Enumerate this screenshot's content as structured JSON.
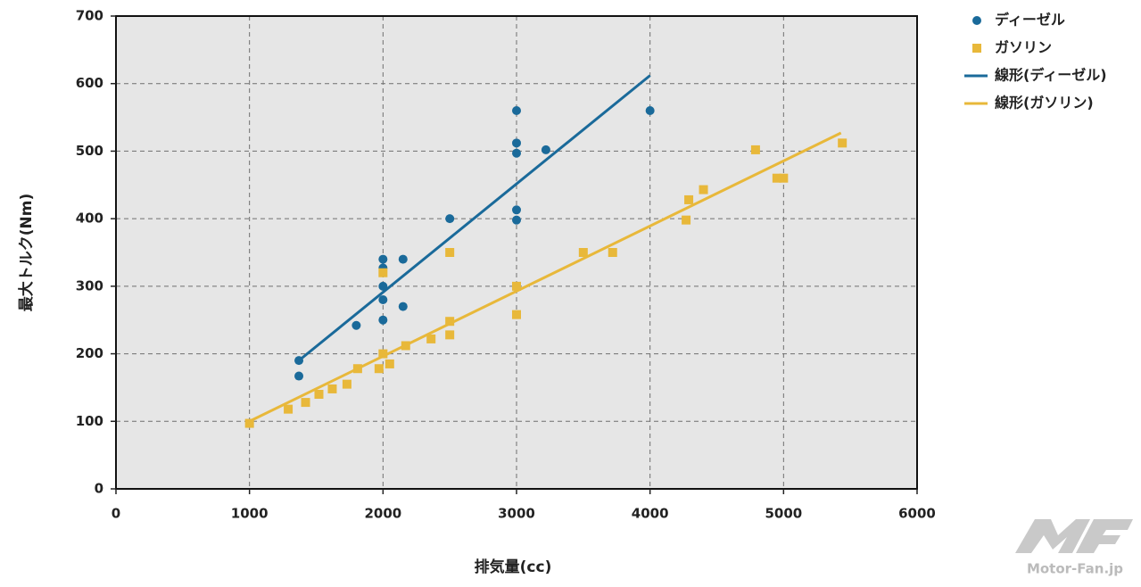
{
  "chart_data": {
    "type": "scatter",
    "xlabel": "排気量(cc)",
    "ylabel": "最大トルク(Nm)",
    "xlim": [
      0,
      6000
    ],
    "ylim": [
      0,
      700
    ],
    "xticks": [
      0,
      1000,
      2000,
      3000,
      4000,
      5000,
      6000
    ],
    "yticks": [
      0,
      100,
      200,
      300,
      400,
      500,
      600,
      700
    ],
    "grid": true,
    "legend": "right",
    "watermark": "Motor-Fan.jp",
    "series": [
      {
        "name": "ディーゼル",
        "type": "scatter",
        "marker": "circle",
        "color": "#1a6a9a",
        "x": [
          1370,
          1370,
          1800,
          2000,
          2000,
          2000,
          2000,
          2000,
          2150,
          2150,
          2500,
          3000,
          3000,
          3000,
          3000,
          3000,
          3220,
          4000
        ],
        "values": [
          190,
          167,
          242,
          340,
          327,
          300,
          280,
          250,
          340,
          270,
          400,
          560,
          512,
          497,
          413,
          398,
          502,
          560
        ]
      },
      {
        "name": "ガソリン",
        "type": "scatter",
        "marker": "square",
        "color": "#e8b83a",
        "x": [
          1000,
          1290,
          1420,
          1520,
          1620,
          1730,
          1810,
          1970,
          2000,
          2000,
          2050,
          2170,
          2360,
          2500,
          2500,
          2500,
          3000,
          3000,
          3500,
          3720,
          4270,
          4290,
          4400,
          4790,
          4950,
          5000,
          5440
        ],
        "values": [
          97,
          118,
          128,
          140,
          148,
          155,
          178,
          178,
          200,
          320,
          185,
          212,
          222,
          248,
          228,
          350,
          258,
          300,
          350,
          350,
          398,
          428,
          443,
          502,
          460,
          460,
          512
        ]
      },
      {
        "name": "線形(ディーゼル)",
        "type": "line",
        "color": "#1a6a9a",
        "x": [
          1370,
          4000
        ],
        "values": [
          190,
          612
        ]
      },
      {
        "name": "線形(ガソリン)",
        "type": "line",
        "color": "#e8b83a",
        "x": [
          1000,
          5430
        ],
        "values": [
          100,
          527
        ]
      }
    ]
  }
}
